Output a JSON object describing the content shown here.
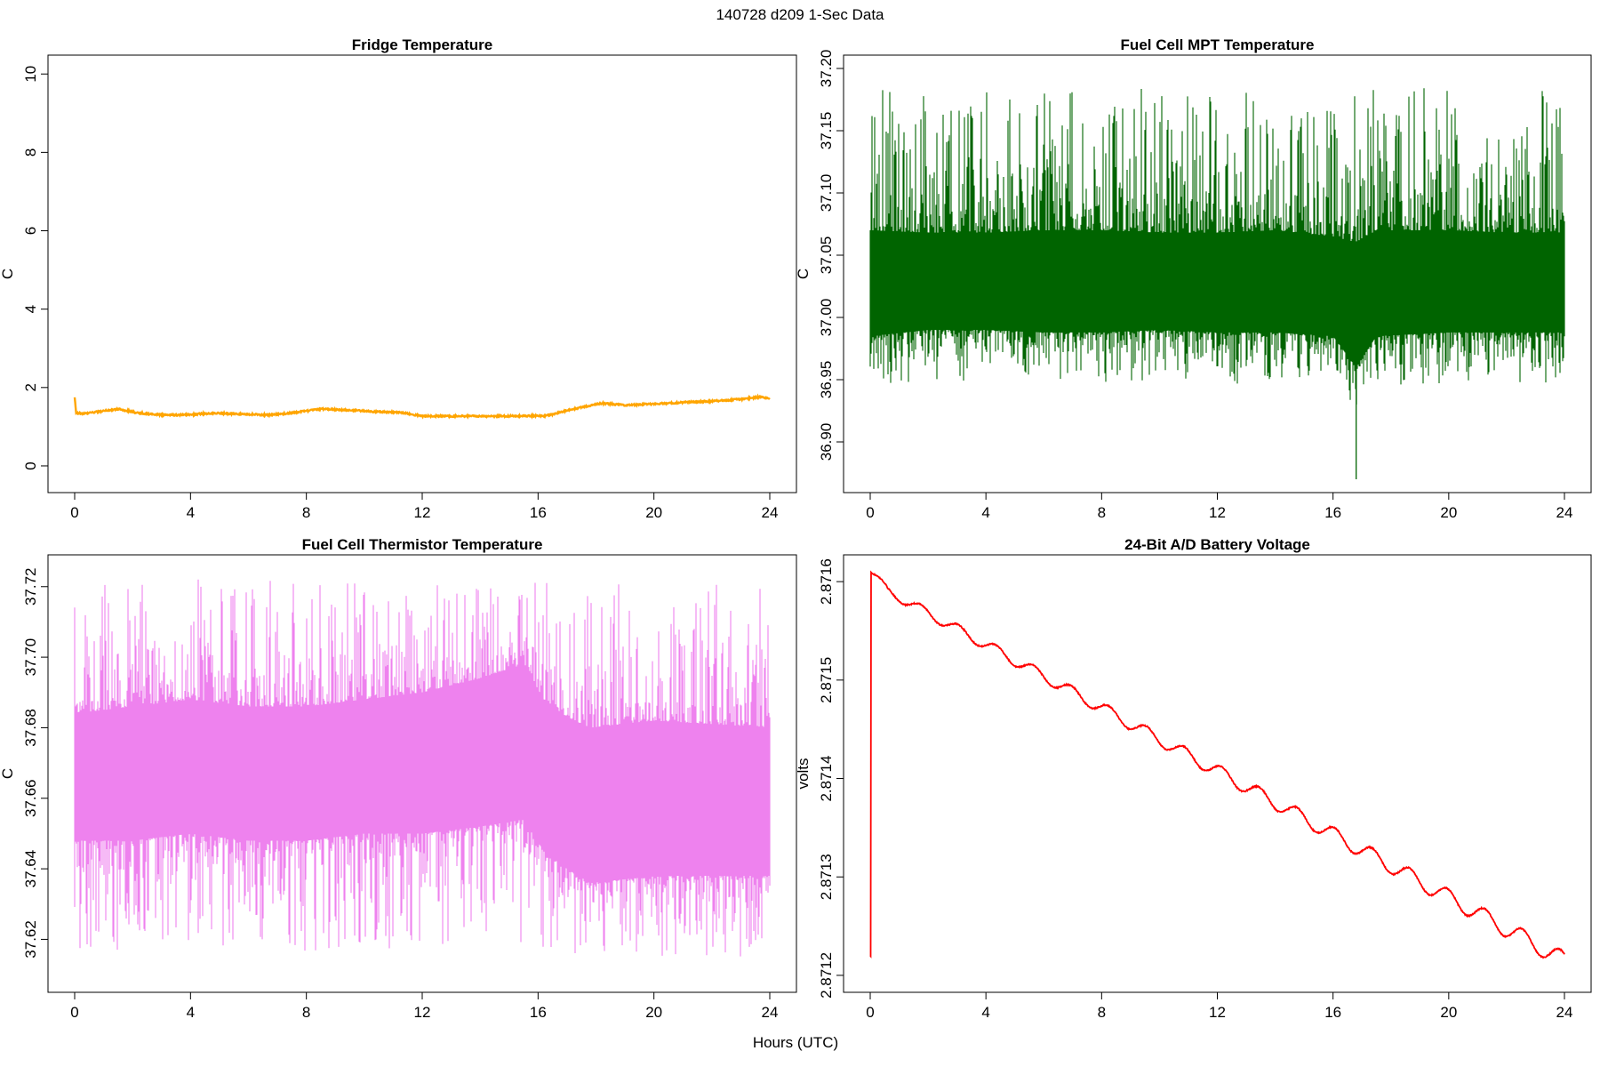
{
  "figure": {
    "suptitle": "140728   d209   1-Sec Data",
    "xlabel": "Hours (UTC)"
  },
  "chart_data": [
    {
      "type": "line",
      "title": "Fridge Temperature",
      "xlabel": "",
      "ylabel": "C",
      "color": "#FFA500",
      "xlim": [
        0,
        24
      ],
      "ylim": [
        -0.5,
        10.3
      ],
      "xticks": [
        0,
        4,
        8,
        12,
        16,
        20,
        24
      ],
      "yticks": [
        0,
        2,
        4,
        6,
        8,
        10
      ],
      "ytick_labels": [
        "0",
        "2",
        "4",
        "6",
        "8",
        "10"
      ],
      "noise_amplitude": 0.02,
      "x": [
        0,
        0.05,
        0.3,
        0.8,
        1.5,
        2.2,
        3.0,
        3.8,
        4.8,
        5.8,
        6.8,
        7.6,
        8.5,
        9.5,
        10.5,
        11.3,
        12.0,
        13.5,
        15.0,
        16.3,
        17.2,
        18.2,
        19.0,
        20.0,
        21.0,
        22.0,
        23.0,
        23.7,
        24.0
      ],
      "y": [
        1.75,
        1.35,
        1.33,
        1.38,
        1.45,
        1.35,
        1.3,
        1.3,
        1.35,
        1.32,
        1.3,
        1.36,
        1.45,
        1.42,
        1.38,
        1.36,
        1.27,
        1.27,
        1.27,
        1.28,
        1.45,
        1.6,
        1.55,
        1.58,
        1.62,
        1.65,
        1.7,
        1.76,
        1.72
      ]
    },
    {
      "type": "line",
      "title": "Fuel Cell MPT Temperature",
      "xlabel": "",
      "ylabel": "C",
      "color": "#006400",
      "xlim": [
        0,
        24
      ],
      "ylim": [
        36.865,
        37.205
      ],
      "xticks": [
        0,
        4,
        8,
        12,
        16,
        20,
        24
      ],
      "yticks": [
        36.9,
        36.95,
        37.0,
        37.05,
        37.1,
        37.15,
        37.2
      ],
      "ytick_labels": [
        "36.90",
        "36.95",
        "37.00",
        "37.05",
        "37.10",
        "37.15",
        "37.20"
      ],
      "x": [
        0,
        2,
        4,
        6,
        8,
        10,
        12,
        14,
        16,
        16.8,
        17.5,
        20,
        22,
        24
      ],
      "band_low": [
        36.985,
        36.99,
        36.99,
        36.988,
        36.988,
        36.99,
        36.988,
        36.988,
        36.985,
        36.96,
        36.985,
        36.988,
        36.988,
        36.988
      ],
      "band_high": [
        37.07,
        37.068,
        37.068,
        37.07,
        37.07,
        37.068,
        37.068,
        37.07,
        37.065,
        37.06,
        37.07,
        37.07,
        37.068,
        37.068
      ],
      "spike_max": 37.192,
      "spike_min": 36.87
    },
    {
      "type": "line",
      "title": "Fuel Cell Thermistor Temperature",
      "xlabel": "",
      "ylabel": "C",
      "color": "#EE82EE",
      "xlim": [
        0,
        24
      ],
      "ylim": [
        37.607,
        37.727
      ],
      "xticks": [
        0,
        4,
        8,
        12,
        16,
        20,
        24
      ],
      "yticks": [
        37.62,
        37.64,
        37.66,
        37.68,
        37.7,
        37.72
      ],
      "ytick_labels": [
        "37.62",
        "37.64",
        "37.66",
        "37.68",
        "37.70",
        "37.72"
      ],
      "x": [
        0,
        2,
        4,
        6,
        8,
        10,
        12,
        14,
        15.5,
        16.2,
        17.0,
        17.8,
        20,
        22,
        24
      ],
      "band_low": [
        37.648,
        37.648,
        37.65,
        37.648,
        37.648,
        37.65,
        37.65,
        37.652,
        37.654,
        37.645,
        37.64,
        37.636,
        37.638,
        37.638,
        37.638
      ],
      "band_high": [
        37.684,
        37.686,
        37.688,
        37.686,
        37.686,
        37.688,
        37.69,
        37.694,
        37.698,
        37.688,
        37.683,
        37.68,
        37.682,
        37.681,
        37.68
      ],
      "spike_max": 37.724,
      "spike_min": 37.611
    },
    {
      "type": "line",
      "title": "24-Bit A/D Battery Voltage",
      "xlabel": "",
      "ylabel": "volts",
      "color": "#FF0000",
      "xlim": [
        0,
        24
      ],
      "ylim": [
        2.87119,
        2.87162
      ],
      "xticks": [
        0,
        4,
        8,
        12,
        16,
        20,
        24
      ],
      "yticks": [
        2.8712,
        2.8713,
        2.8714,
        2.8715,
        2.8716
      ],
      "ytick_labels": [
        "2.8712",
        "2.8713",
        "2.8714",
        "2.8715",
        "2.8716"
      ],
      "start_value": 2.87122,
      "x": [
        0.02,
        0.1,
        0.4,
        0.8,
        1.4,
        2.2,
        2.9,
        3.6,
        4.6,
        5.1,
        5.6,
        6.3,
        7.3,
        8.1,
        9.0,
        9.5,
        10.1,
        10.8,
        11.5,
        12.2,
        12.9,
        13.6,
        14.2,
        14.9,
        15.6,
        16.0,
        16.7,
        17.2,
        17.9,
        18.5,
        19.2,
        19.9,
        20.6,
        21.2,
        21.9,
        22.6,
        23.2,
        23.6,
        24.0
      ]
    }
  ]
}
